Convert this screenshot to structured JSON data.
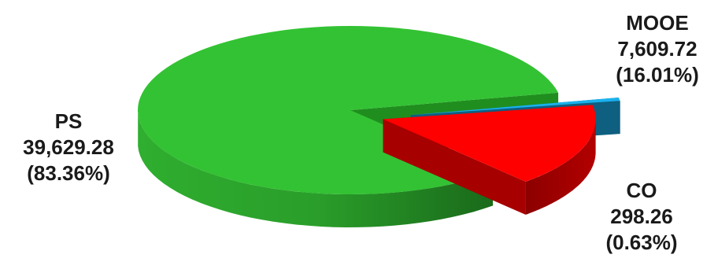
{
  "chart_data": {
    "type": "pie",
    "style": "3d-exploded",
    "title": "",
    "slices": [
      {
        "name": "PS",
        "value": 39629.28,
        "value_label": "39,629.28",
        "percent_label": "(83.36%)",
        "color": "#33c233",
        "side_color": "#1f8e1f"
      },
      {
        "name": "MOOE",
        "value": 7609.72,
        "value_label": "7,609.72",
        "percent_label": "(16.01%)",
        "color": "#ff0000",
        "side_color": "#a60000"
      },
      {
        "name": "CO",
        "value": 298.26,
        "value_label": "298.26",
        "percent_label": "(0.63%)",
        "color": "#1ab2ee",
        "side_color": "#0e5f80"
      }
    ],
    "legend": "none"
  }
}
